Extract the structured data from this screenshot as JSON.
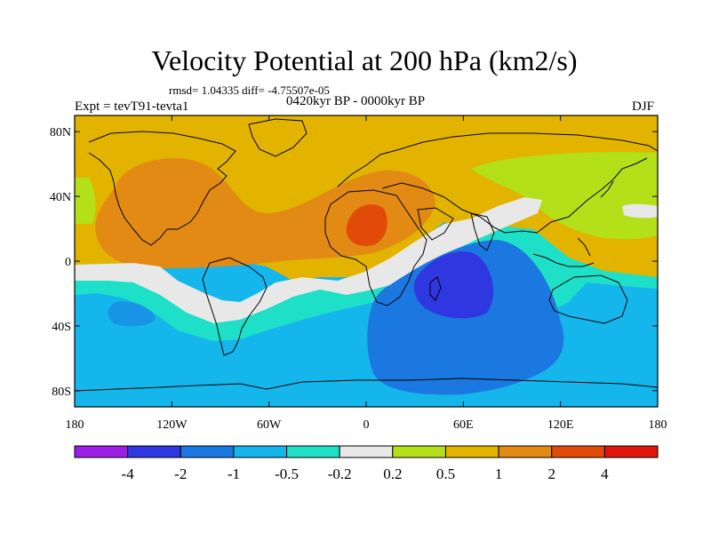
{
  "title": "Velocity Potential at 200 hPa (km2/s)",
  "subtitle_stats": "rmsd= 1.04335 diff= -4.75507e-05",
  "subtitle_period": "0420kyr BP - 0000kyr BP",
  "experiment": "Expt = tevT91-tevta1",
  "season": "DJF",
  "map": {
    "projection": "cylindrical equidistant",
    "lon_range": [
      -180,
      180
    ],
    "lat_range": [
      -90,
      90
    ],
    "x_ticks": [
      {
        "lon": -180,
        "label": "180"
      },
      {
        "lon": -120,
        "label": "120W"
      },
      {
        "lon": -60,
        "label": "60W"
      },
      {
        "lon": 0,
        "label": "0"
      },
      {
        "lon": 60,
        "label": "60E"
      },
      {
        "lon": 120,
        "label": "120E"
      },
      {
        "lon": 180,
        "label": "180"
      }
    ],
    "y_ticks": [
      {
        "lat": 80,
        "label": "80N"
      },
      {
        "lat": 40,
        "label": "40N"
      },
      {
        "lat": 0,
        "label": "0"
      },
      {
        "lat": -40,
        "label": "40S"
      },
      {
        "lat": -80,
        "label": "80S"
      }
    ],
    "field_features": [
      {
        "name": "western-hemisphere-positive-max",
        "level": "1 to 2",
        "center_lon": -120,
        "center_lat": 40
      },
      {
        "name": "north-africa-positive-max",
        "level": "2 to 4",
        "center_lon": 5,
        "center_lat": 22
      },
      {
        "name": "indian-ocean-negative-min",
        "level": "-4 to -2",
        "center_lon": 55,
        "center_lat": -15
      },
      {
        "name": "southern-ocean-negative-region",
        "level": "-2 to -1",
        "center_lon": 30,
        "center_lat": -50
      }
    ]
  },
  "colorbar": {
    "labels": [
      "-4",
      "-2",
      "-1",
      "-0.5",
      "-0.2",
      "0.2",
      "0.5",
      "1",
      "2",
      "4"
    ],
    "colors": [
      "#9a1ee6",
      "#2f37e0",
      "#1a78e0",
      "#14b6ec",
      "#1ee0c8",
      "#e8e8e8",
      "#b4e01a",
      "#e2b400",
      "#e28a14",
      "#e24a0a",
      "#e0160e"
    ]
  }
}
